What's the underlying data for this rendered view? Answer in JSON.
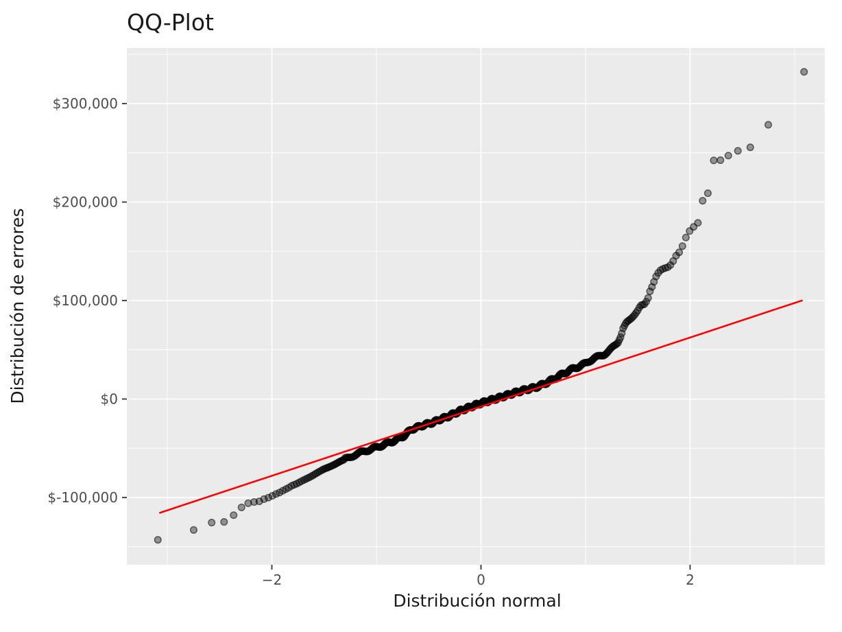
{
  "chart_data": {
    "type": "scatter",
    "title": "QQ-Plot",
    "xlabel": "Distribución normal",
    "ylabel": "Distribución de errores",
    "xlim": [
      -3.387,
      3.289
    ],
    "ylim": [
      -168300,
      356400
    ],
    "grid": "on",
    "legend": "none",
    "x_major_ticks": [
      {
        "v": -2,
        "label": "−2"
      },
      {
        "v": 0,
        "label": "0"
      },
      {
        "v": 2,
        "label": "2"
      }
    ],
    "x_minor_ticks": [
      -3,
      -1,
      1,
      3
    ],
    "y_major_ticks": [
      {
        "v": 300000,
        "label": "$300,000"
      },
      {
        "v": 200000,
        "label": "$200,000"
      },
      {
        "v": 100000,
        "label": "$100,000"
      },
      {
        "v": 0,
        "label": "$0"
      },
      {
        "v": -100000,
        "label": "$-100,000"
      }
    ],
    "y_minor_ticks": [
      350000,
      250000,
      150000,
      50000,
      -50000,
      -150000
    ],
    "n_points": 500,
    "qq_curve_anchors": [
      [
        -3.09,
        -143000
      ],
      [
        -2.748,
        -133000
      ],
      [
        -2.576,
        -125500
      ],
      [
        -2.457,
        -124800
      ],
      [
        -2.366,
        -118000
      ],
      [
        -2.29,
        -110000
      ],
      [
        -2.226,
        -105800
      ],
      [
        -2.17,
        -104600
      ],
      [
        -2.12,
        -103900
      ],
      [
        -2.075,
        -101600
      ],
      [
        -2.034,
        -100200
      ],
      [
        -1.995,
        -98300
      ],
      [
        -1.96,
        -96500
      ],
      [
        -1.927,
        -95000
      ],
      [
        -1.896,
        -93200
      ],
      [
        -1.866,
        -91500
      ],
      [
        -1.838,
        -90000
      ],
      [
        -1.812,
        -88200
      ],
      [
        -1.787,
        -87100
      ],
      [
        -1.762,
        -86000
      ],
      [
        -1.7,
        -82500
      ],
      [
        -1.63,
        -79000
      ],
      [
        -1.56,
        -74500
      ],
      [
        -1.5,
        -71000
      ],
      [
        -1.45,
        -69000
      ],
      [
        -1.4,
        -66500
      ],
      [
        -1.35,
        -63500
      ],
      [
        -1.3,
        -61000
      ],
      [
        -1.25,
        -58500
      ],
      [
        -1.2,
        -56500
      ],
      [
        -1.15,
        -54500
      ],
      [
        -1.1,
        -52500
      ],
      [
        -1.05,
        -50800
      ],
      [
        -1.0,
        -49200
      ],
      [
        -0.95,
        -47200
      ],
      [
        -0.9,
        -45200
      ],
      [
        -0.85,
        -43200
      ],
      [
        -0.8,
        -41000
      ],
      [
        -0.74,
        -37500
      ],
      [
        -0.66,
        -30500
      ],
      [
        -0.6,
        -28500
      ],
      [
        -0.55,
        -26500
      ],
      [
        -0.5,
        -25000
      ],
      [
        -0.45,
        -23500
      ],
      [
        -0.39,
        -20500
      ],
      [
        -0.33,
        -18500
      ],
      [
        -0.27,
        -15500
      ],
      [
        -0.2,
        -12000
      ],
      [
        -0.15,
        -10000
      ],
      [
        -0.1,
        -8000
      ],
      [
        -0.05,
        -6000
      ],
      [
        0.0,
        -4200
      ],
      [
        0.05,
        -2600
      ],
      [
        0.1,
        -1000
      ],
      [
        0.15,
        500
      ],
      [
        0.2,
        2200
      ],
      [
        0.25,
        3900
      ],
      [
        0.3,
        5600
      ],
      [
        0.35,
        7200
      ],
      [
        0.4,
        8700
      ],
      [
        0.46,
        10300
      ],
      [
        0.52,
        11700
      ],
      [
        0.57,
        13800
      ],
      [
        0.62,
        16200
      ],
      [
        0.68,
        19500
      ],
      [
        0.74,
        22900
      ],
      [
        0.8,
        26500
      ],
      [
        0.85,
        29200
      ],
      [
        0.9,
        31500
      ],
      [
        0.95,
        33700
      ],
      [
        1.0,
        36000
      ],
      [
        1.04,
        39000
      ],
      [
        1.08,
        41200
      ],
      [
        1.13,
        43200
      ],
      [
        1.17,
        45000
      ],
      [
        1.21,
        48000
      ],
      [
        1.24,
        50500
      ],
      [
        1.28,
        53500
      ],
      [
        1.31,
        57000
      ],
      [
        1.34,
        64000
      ],
      [
        1.36,
        72000
      ],
      [
        1.39,
        78000
      ],
      [
        1.44,
        82000
      ],
      [
        1.47,
        85500
      ],
      [
        1.5,
        90000
      ],
      [
        1.525,
        95000
      ],
      [
        1.57,
        96500
      ],
      [
        1.6,
        103000
      ],
      [
        1.615,
        109000
      ],
      [
        1.63,
        112500
      ],
      [
        1.65,
        117700
      ],
      [
        1.68,
        126000
      ],
      [
        1.713,
        130500
      ],
      [
        1.737,
        132000
      ],
      [
        1.762,
        133000
      ],
      [
        1.787,
        133800
      ],
      [
        1.812,
        136000
      ],
      [
        1.838,
        140000
      ],
      [
        1.866,
        145500
      ],
      [
        1.896,
        149000
      ],
      [
        1.927,
        155300
      ],
      [
        1.96,
        164000
      ],
      [
        1.995,
        170500
      ],
      [
        2.034,
        174800
      ],
      [
        2.075,
        178900
      ],
      [
        2.12,
        201300
      ],
      [
        2.17,
        208900
      ],
      [
        2.226,
        242300
      ],
      [
        2.29,
        242500
      ],
      [
        2.366,
        247200
      ],
      [
        2.457,
        252000
      ],
      [
        2.576,
        255600
      ],
      [
        2.748,
        278500
      ],
      [
        3.09,
        332200
      ]
    ],
    "reference_line": {
      "x1": -3.07,
      "y1": -115500,
      "x2": 3.07,
      "y2": 100000,
      "color": "#FF0000"
    },
    "colors": {
      "panel_background": "#EBEBEB",
      "gridline": "#FFFFFF",
      "tick_mark": "#333333",
      "tick_label": "#4D4D4D",
      "text": "#1A1A1A",
      "point": "#000000",
      "reference_line": "#FF0000"
    },
    "point_style": {
      "radius": 4.8,
      "fill_opacity": 0.38,
      "stroke_opacity": 0.55,
      "stroke_width": 1.5
    }
  }
}
